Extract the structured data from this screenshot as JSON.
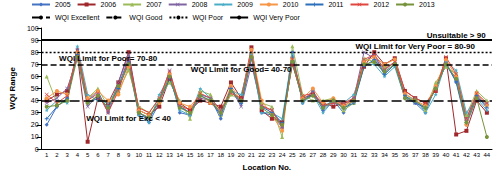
{
  "chart_data": {
    "type": "line",
    "xlabel": "Location No.",
    "ylabel": "WQI Range",
    "categories": [
      1,
      2,
      3,
      4,
      5,
      6,
      7,
      8,
      9,
      10,
      11,
      12,
      13,
      14,
      15,
      16,
      17,
      18,
      19,
      20,
      21,
      22,
      23,
      24,
      25,
      26,
      27,
      28,
      29,
      30,
      31,
      32,
      33,
      34,
      35,
      36,
      37,
      38,
      39,
      40,
      41,
      42,
      43,
      44
    ],
    "ylim": [
      0,
      100
    ],
    "yticks": [
      0,
      10,
      20,
      30,
      40,
      50,
      60,
      70,
      80,
      90,
      100
    ],
    "grid": false,
    "legend": "top",
    "series": [
      {
        "name": "2005",
        "color": "#4472c4",
        "marker": "diamond",
        "values": [
          20,
          35,
          42,
          82,
          40,
          48,
          30,
          52,
          75,
          28,
          22,
          38,
          62,
          30,
          28,
          45,
          42,
          25,
          48,
          38,
          75,
          30,
          28,
          18,
          80,
          38,
          48,
          32,
          40,
          30,
          42,
          72,
          78,
          62,
          70,
          42,
          38,
          30,
          52,
          72,
          55,
          20,
          42,
          38
        ]
      },
      {
        "name": "2006",
        "color": "#a0282c",
        "marker": "square",
        "values": [
          40,
          45,
          48,
          78,
          6,
          42,
          38,
          55,
          80,
          32,
          28,
          35,
          58,
          38,
          32,
          40,
          38,
          35,
          55,
          42,
          84,
          32,
          25,
          22,
          70,
          42,
          45,
          38,
          35,
          38,
          40,
          68,
          80,
          70,
          75,
          48,
          42,
          38,
          48,
          75,
          12,
          15,
          40,
          30
        ]
      },
      {
        "name": "2007",
        "color": "#9bbb59",
        "marker": "triangle",
        "values": [
          60,
          38,
          40,
          80,
          42,
          50,
          35,
          48,
          65,
          35,
          30,
          42,
          55,
          40,
          25,
          48,
          45,
          28,
          45,
          40,
          80,
          38,
          35,
          10,
          85,
          45,
          40,
          40,
          42,
          32,
          38,
          75,
          72,
          68,
          70,
          45,
          40,
          32,
          55,
          68,
          62,
          28,
          48,
          40
        ]
      },
      {
        "name": "2008",
        "color": "#8064a2",
        "marker": "x",
        "values": [
          38,
          42,
          50,
          75,
          35,
          45,
          32,
          55,
          78,
          30,
          25,
          40,
          65,
          35,
          30,
          42,
          40,
          30,
          50,
          35,
          70,
          35,
          32,
          20,
          72,
          40,
          48,
          35,
          38,
          35,
          42,
          80,
          75,
          65,
          72,
          44,
          38,
          35,
          50,
          70,
          58,
          25,
          45,
          35
        ]
      },
      {
        "name": "2009",
        "color": "#4bacc6",
        "marker": "star",
        "values": [
          32,
          40,
          38,
          85,
          45,
          40,
          38,
          50,
          70,
          28,
          22,
          45,
          60,
          32,
          28,
          50,
          42,
          32,
          48,
          45,
          78,
          30,
          30,
          25,
          78,
          38,
          45,
          30,
          40,
          38,
          45,
          70,
          70,
          60,
          68,
          42,
          42,
          30,
          45,
          72,
          65,
          30,
          42,
          32
        ]
      },
      {
        "name": "2010",
        "color": "#f79646",
        "marker": "circle",
        "values": [
          42,
          48,
          45,
          80,
          42,
          48,
          40,
          45,
          68,
          32,
          28,
          38,
          62,
          38,
          35,
          45,
          38,
          30,
          52,
          40,
          82,
          40,
          28,
          15,
          75,
          42,
          50,
          38,
          42,
          36,
          40,
          72,
          76,
          70,
          74,
          46,
          40,
          36,
          52,
          74,
          60,
          20,
          46,
          36
        ]
      },
      {
        "name": "2011",
        "color": "#2c6fbb",
        "marker": "plus",
        "values": [
          25,
          35,
          42,
          78,
          38,
          42,
          35,
          50,
          72,
          30,
          25,
          40,
          58,
          35,
          30,
          44,
          40,
          28,
          50,
          38,
          76,
          35,
          30,
          22,
          76,
          40,
          45,
          35,
          40,
          34,
          38,
          68,
          74,
          62,
          70,
          44,
          38,
          34,
          50,
          70,
          56,
          22,
          44,
          34
        ]
      },
      {
        "name": "2012",
        "color": "#e0463f",
        "marker": "x",
        "values": [
          45,
          38,
          44,
          82,
          40,
          46,
          30,
          48,
          74,
          34,
          30,
          42,
          64,
          36,
          32,
          46,
          42,
          32,
          46,
          42,
          80,
          36,
          32,
          18,
          74,
          44,
          46,
          36,
          38,
          38,
          42,
          74,
          78,
          66,
          72,
          48,
          42,
          38,
          48,
          76,
          62,
          25,
          46,
          38
        ]
      },
      {
        "name": "2013",
        "color": "#77933c",
        "marker": "circle",
        "values": [
          35,
          36,
          40,
          76,
          38,
          44,
          34,
          52,
          70,
          30,
          26,
          40,
          60,
          34,
          30,
          44,
          40,
          30,
          48,
          40,
          76,
          34,
          28,
          20,
          72,
          40,
          44,
          34,
          40,
          34,
          40,
          70,
          72,
          64,
          70,
          42,
          40,
          34,
          50,
          70,
          58,
          22,
          42,
          10
        ]
      }
    ],
    "reference_lines": [
      {
        "name": "WQI Excellent",
        "value": 40,
        "color": "#000000",
        "line_style": "longdash"
      },
      {
        "name": "WQI Good",
        "value": 70,
        "color": "#000000",
        "line_style": "dashed"
      },
      {
        "name": "WQI Poor",
        "value": 80,
        "color": "#000000",
        "line_style": "dotted"
      },
      {
        "name": "WQI Very Poor",
        "value": 90,
        "color": "#000000",
        "line_style": "solid"
      }
    ],
    "annotations": [
      {
        "text": "Unsuitable > 90",
        "x": 41,
        "y": 94
      },
      {
        "text": "WQI Limit for Very Poor = 80-90",
        "x": 37,
        "y": 85
      },
      {
        "text": "WQI Limit for Poor= 70-80",
        "x": 7,
        "y": 75
      },
      {
        "text": "WQI Limit for Good= 40-70",
        "x": 20,
        "y": 66
      },
      {
        "text": "WQI Limit for Exc < 40",
        "x": 9,
        "y": 25
      }
    ]
  }
}
